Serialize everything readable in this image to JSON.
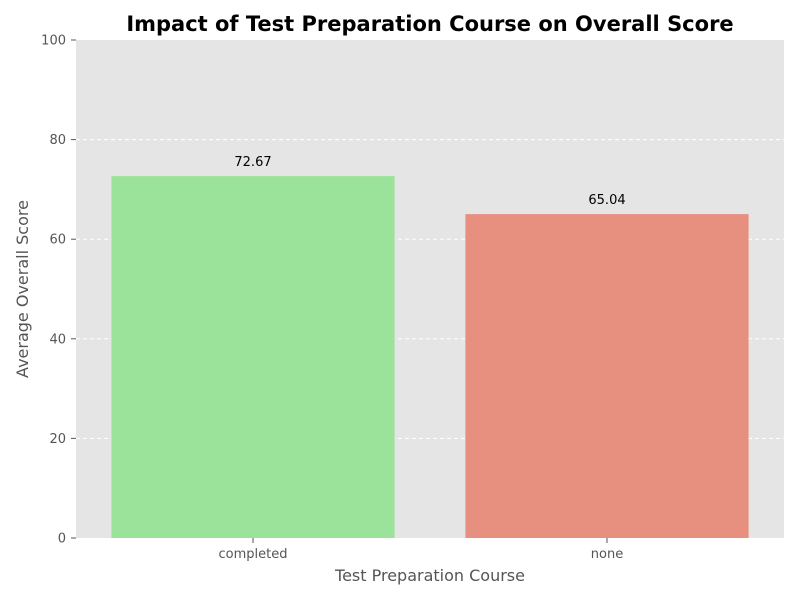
{
  "chart_data": {
    "type": "bar",
    "title": "Impact of Test Preparation Course on Overall Score",
    "xlabel": "Test Preparation Course",
    "ylabel": "Average Overall Score",
    "categories": [
      "completed",
      "none"
    ],
    "values": [
      72.67,
      65.04
    ],
    "value_labels": [
      "72.67",
      "65.04"
    ],
    "bar_colors": [
      "#9be39b",
      "#e8907f"
    ],
    "ylim": [
      0,
      100
    ],
    "yticks": [
      0,
      20,
      40,
      60,
      80,
      100
    ],
    "ytick_labels": [
      "0",
      "20",
      "40",
      "60",
      "80",
      "100"
    ],
    "grid": true,
    "grid_style": "dashed",
    "background_color": "#e5e5e5"
  }
}
